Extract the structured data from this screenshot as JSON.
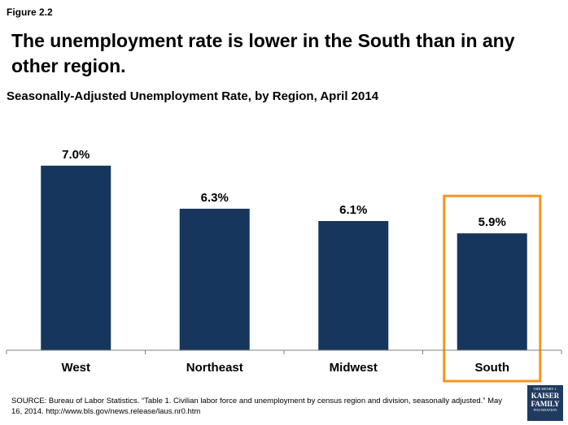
{
  "figure_label": "Figure 2.2",
  "headline": "The unemployment rate is lower in the South than in any other region.",
  "chart_data": {
    "type": "bar",
    "title": "Seasonally-Adjusted Unemployment Rate, by Region, April 2014",
    "categories": [
      "West",
      "Northeast",
      "Midwest",
      "South"
    ],
    "values": [
      7.0,
      6.3,
      6.1,
      5.9
    ],
    "data_labels": [
      "7.0%",
      "6.3%",
      "6.1%",
      "5.9%"
    ],
    "unit": "%",
    "xlabel": "",
    "ylabel": "",
    "ylim": [
      4.0,
      7.5
    ],
    "highlighted_category": "South",
    "bar_color": "#17365d",
    "highlight_color": "#f7941d",
    "grid": false
  },
  "source": "SOURCE: Bureau of Labor Statistics. “Table 1. Civilian labor force and unemployment by census region and division, seasonally adjusted.” May 16, 2014. http://www.bls.gov/news.release/laus.nr0.htm",
  "logo": {
    "line1": "THE HENRY J.",
    "line2": "KAISER",
    "line3": "FAMILY",
    "line4": "FOUNDATION"
  }
}
